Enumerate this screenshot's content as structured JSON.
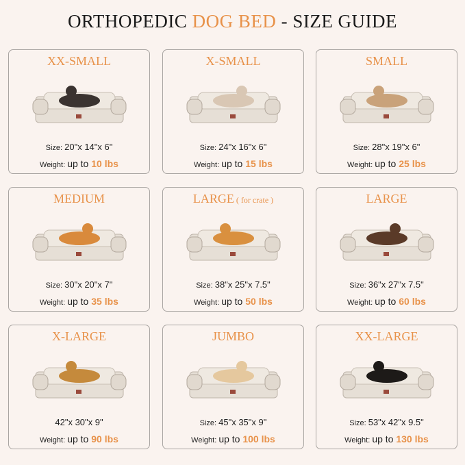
{
  "title": {
    "part1": "ORTHOPEDIC ",
    "accent": "DOG BED",
    "part2": " - SIZE GUIDE"
  },
  "labels": {
    "size": "Size: ",
    "weight": "Weight: ",
    "up_to": "up to "
  },
  "colors": {
    "accent": "#e8924a",
    "background": "#faf3ef"
  },
  "cards": [
    {
      "name": "XX-SMALL",
      "sub": "",
      "size": "20\"x 14\"x 6\"",
      "weight": "10 lbs",
      "show_size_label": true
    },
    {
      "name": "X-SMALL",
      "sub": "",
      "size": "24\"x 16\"x 6\"",
      "weight": "15 lbs",
      "show_size_label": true
    },
    {
      "name": "SMALL",
      "sub": "",
      "size": "28\"x 19\"x 6\"",
      "weight": "25 lbs",
      "show_size_label": true
    },
    {
      "name": "MEDIUM",
      "sub": "",
      "size": "30\"x 20\"x 7\"",
      "weight": "35 lbs",
      "show_size_label": true
    },
    {
      "name": "LARGE",
      "sub": " ( for crate )",
      "size": "38\"x 25\"x 7.5\"",
      "weight": "50 lbs",
      "show_size_label": true
    },
    {
      "name": "LARGE",
      "sub": "",
      "size": "36\"x 27\"x 7.5\"",
      "weight": "60 lbs",
      "show_size_label": true
    },
    {
      "name": "X-LARGE",
      "sub": "",
      "size": "42\"x 30\"x 9\"",
      "weight": "90 lbs",
      "show_size_label": false
    },
    {
      "name": "JUMBO",
      "sub": "",
      "size": "45\"x 35\"x 9\"",
      "weight": "100 lbs",
      "show_size_label": true
    },
    {
      "name": "XX-LARGE",
      "sub": "",
      "size": "53\"x 42\"x 9.5\"",
      "weight": "130 lbs",
      "show_size_label": true
    }
  ]
}
